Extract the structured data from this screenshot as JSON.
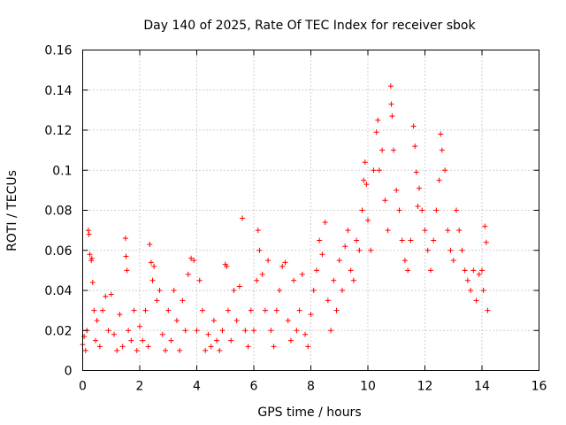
{
  "chart_data": {
    "type": "scatter",
    "title": "Day 140 of 2025, Rate Of TEC Index for receiver sbok",
    "xlabel": "GPS time / hours",
    "ylabel": "ROTI / TECUs",
    "xlim": [
      0,
      16
    ],
    "ylim": [
      0,
      0.16
    ],
    "xticks": [
      0,
      2,
      4,
      6,
      8,
      10,
      12,
      14,
      16
    ],
    "xtick_labels": [
      "0",
      "2",
      "4",
      "6",
      "8",
      "10",
      "12",
      "14",
      "16"
    ],
    "yticks": [
      0,
      0.02,
      0.04,
      0.06,
      0.08,
      0.1,
      0.12,
      0.14,
      0.16
    ],
    "ytick_labels": [
      "0",
      "0.02",
      "0.04",
      "0.06",
      "0.08",
      "0.1",
      "0.12",
      "0.14",
      "0.16"
    ],
    "grid": true,
    "legend": "none",
    "marker": "+",
    "series": [
      {
        "name": "ROTI",
        "color": "#ff0000",
        "points": [
          [
            0.0,
            0.013
          ],
          [
            0.05,
            0.017
          ],
          [
            0.1,
            0.01
          ],
          [
            0.15,
            0.02
          ],
          [
            0.2,
            0.07
          ],
          [
            0.22,
            0.068
          ],
          [
            0.25,
            0.058
          ],
          [
            0.3,
            0.055
          ],
          [
            0.32,
            0.056
          ],
          [
            0.35,
            0.044
          ],
          [
            0.4,
            0.03
          ],
          [
            0.45,
            0.015
          ],
          [
            0.5,
            0.025
          ],
          [
            0.6,
            0.012
          ],
          [
            0.7,
            0.03
          ],
          [
            0.8,
            0.037
          ],
          [
            0.9,
            0.02
          ],
          [
            1.0,
            0.038
          ],
          [
            1.1,
            0.018
          ],
          [
            1.2,
            0.01
          ],
          [
            1.3,
            0.028
          ],
          [
            1.4,
            0.012
          ],
          [
            1.5,
            0.066
          ],
          [
            1.52,
            0.057
          ],
          [
            1.55,
            0.05
          ],
          [
            1.6,
            0.02
          ],
          [
            1.7,
            0.015
          ],
          [
            1.8,
            0.03
          ],
          [
            1.9,
            0.01
          ],
          [
            2.0,
            0.022
          ],
          [
            2.1,
            0.015
          ],
          [
            2.2,
            0.03
          ],
          [
            2.3,
            0.012
          ],
          [
            2.35,
            0.063
          ],
          [
            2.4,
            0.054
          ],
          [
            2.45,
            0.045
          ],
          [
            2.5,
            0.052
          ],
          [
            2.6,
            0.035
          ],
          [
            2.7,
            0.04
          ],
          [
            2.8,
            0.018
          ],
          [
            2.9,
            0.01
          ],
          [
            3.0,
            0.03
          ],
          [
            3.1,
            0.015
          ],
          [
            3.2,
            0.04
          ],
          [
            3.3,
            0.025
          ],
          [
            3.4,
            0.01
          ],
          [
            3.5,
            0.035
          ],
          [
            3.6,
            0.02
          ],
          [
            3.7,
            0.048
          ],
          [
            3.8,
            0.056
          ],
          [
            3.9,
            0.055
          ],
          [
            4.0,
            0.02
          ],
          [
            4.1,
            0.045
          ],
          [
            4.2,
            0.03
          ],
          [
            4.3,
            0.01
          ],
          [
            4.4,
            0.018
          ],
          [
            4.5,
            0.012
          ],
          [
            4.6,
            0.025
          ],
          [
            4.7,
            0.015
          ],
          [
            4.8,
            0.01
          ],
          [
            4.9,
            0.02
          ],
          [
            5.0,
            0.053
          ],
          [
            5.05,
            0.052
          ],
          [
            5.1,
            0.03
          ],
          [
            5.2,
            0.015
          ],
          [
            5.3,
            0.04
          ],
          [
            5.4,
            0.025
          ],
          [
            5.5,
            0.042
          ],
          [
            5.6,
            0.076
          ],
          [
            5.7,
            0.02
          ],
          [
            5.8,
            0.012
          ],
          [
            5.9,
            0.03
          ],
          [
            6.0,
            0.02
          ],
          [
            6.1,
            0.045
          ],
          [
            6.15,
            0.07
          ],
          [
            6.2,
            0.06
          ],
          [
            6.3,
            0.048
          ],
          [
            6.4,
            0.03
          ],
          [
            6.5,
            0.055
          ],
          [
            6.6,
            0.02
          ],
          [
            6.7,
            0.012
          ],
          [
            6.8,
            0.03
          ],
          [
            6.9,
            0.04
          ],
          [
            7.0,
            0.052
          ],
          [
            7.1,
            0.054
          ],
          [
            7.2,
            0.025
          ],
          [
            7.3,
            0.015
          ],
          [
            7.4,
            0.045
          ],
          [
            7.5,
            0.02
          ],
          [
            7.6,
            0.03
          ],
          [
            7.7,
            0.048
          ],
          [
            7.8,
            0.018
          ],
          [
            7.9,
            0.012
          ],
          [
            8.0,
            0.028
          ],
          [
            8.1,
            0.04
          ],
          [
            8.2,
            0.05
          ],
          [
            8.3,
            0.065
          ],
          [
            8.4,
            0.058
          ],
          [
            8.5,
            0.074
          ],
          [
            8.6,
            0.035
          ],
          [
            8.7,
            0.02
          ],
          [
            8.8,
            0.045
          ],
          [
            8.9,
            0.03
          ],
          [
            9.0,
            0.055
          ],
          [
            9.1,
            0.04
          ],
          [
            9.2,
            0.062
          ],
          [
            9.3,
            0.07
          ],
          [
            9.4,
            0.05
          ],
          [
            9.5,
            0.045
          ],
          [
            9.6,
            0.065
          ],
          [
            9.7,
            0.06
          ],
          [
            9.8,
            0.08
          ],
          [
            9.85,
            0.095
          ],
          [
            9.9,
            0.104
          ],
          [
            9.95,
            0.093
          ],
          [
            10.0,
            0.075
          ],
          [
            10.1,
            0.06
          ],
          [
            10.2,
            0.1
          ],
          [
            10.3,
            0.119
          ],
          [
            10.35,
            0.125
          ],
          [
            10.4,
            0.1
          ],
          [
            10.5,
            0.11
          ],
          [
            10.6,
            0.085
          ],
          [
            10.7,
            0.07
          ],
          [
            10.8,
            0.142
          ],
          [
            10.82,
            0.133
          ],
          [
            10.85,
            0.127
          ],
          [
            10.9,
            0.11
          ],
          [
            11.0,
            0.09
          ],
          [
            11.1,
            0.08
          ],
          [
            11.2,
            0.065
          ],
          [
            11.3,
            0.055
          ],
          [
            11.4,
            0.05
          ],
          [
            11.5,
            0.065
          ],
          [
            11.6,
            0.122
          ],
          [
            11.65,
            0.112
          ],
          [
            11.7,
            0.099
          ],
          [
            11.75,
            0.082
          ],
          [
            11.8,
            0.091
          ],
          [
            11.9,
            0.08
          ],
          [
            12.0,
            0.07
          ],
          [
            12.1,
            0.06
          ],
          [
            12.2,
            0.05
          ],
          [
            12.3,
            0.065
          ],
          [
            12.4,
            0.08
          ],
          [
            12.5,
            0.095
          ],
          [
            12.55,
            0.118
          ],
          [
            12.6,
            0.11
          ],
          [
            12.7,
            0.1
          ],
          [
            12.8,
            0.07
          ],
          [
            12.9,
            0.06
          ],
          [
            13.0,
            0.055
          ],
          [
            13.1,
            0.08
          ],
          [
            13.2,
            0.07
          ],
          [
            13.3,
            0.06
          ],
          [
            13.4,
            0.05
          ],
          [
            13.5,
            0.045
          ],
          [
            13.6,
            0.04
          ],
          [
            13.7,
            0.05
          ],
          [
            13.8,
            0.035
          ],
          [
            13.9,
            0.048
          ],
          [
            14.0,
            0.05
          ],
          [
            14.05,
            0.04
          ],
          [
            14.1,
            0.072
          ],
          [
            14.15,
            0.064
          ],
          [
            14.2,
            0.03
          ]
        ]
      }
    ]
  }
}
